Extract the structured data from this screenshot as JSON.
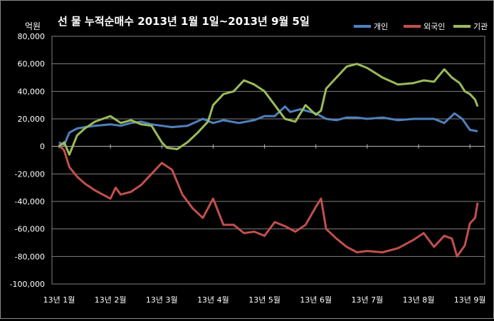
{
  "chart_data": {
    "type": "line",
    "title": "선 물 누적순매수 2013년 1월 1일~2013년 9월 5일",
    "ylabel": "억원",
    "xlabel": "",
    "ylim": [
      -100000,
      80000
    ],
    "yticks": [
      80000,
      60000,
      40000,
      20000,
      0,
      -20000,
      -40000,
      -60000,
      -80000,
      -100000
    ],
    "ytick_labels": [
      "80,000",
      "60,000",
      "40,000",
      "20,000",
      "0",
      "-20,000",
      "-40,000",
      "-60,000",
      "-80,000",
      "-100,000"
    ],
    "x_ticks": [
      "13년 1월",
      "13년 2월",
      "13년 3월",
      "13년 4월",
      "13년 5월",
      "13년 6월",
      "13년 7월",
      "13년 8월",
      "13년 9월"
    ],
    "xlim": [
      0,
      8.15
    ],
    "grid": true,
    "legend": "top-right",
    "series": [
      {
        "name": "개인",
        "color": "#4f81bd",
        "x": [
          0,
          0.1,
          0.2,
          0.35,
          0.5,
          0.7,
          1.0,
          1.2,
          1.4,
          1.6,
          1.8,
          2.0,
          2.2,
          2.5,
          2.8,
          3.0,
          3.2,
          3.5,
          3.8,
          4.0,
          4.2,
          4.4,
          4.5,
          4.7,
          4.9,
          5.0,
          5.2,
          5.4,
          5.6,
          5.8,
          6.0,
          6.3,
          6.6,
          6.9,
          7.1,
          7.3,
          7.5,
          7.7,
          7.85,
          8.0,
          8.15
        ],
        "values": [
          3000,
          1000,
          10000,
          13000,
          14000,
          15000,
          16000,
          15000,
          17000,
          18000,
          16000,
          15000,
          14000,
          15000,
          20000,
          17000,
          19000,
          17000,
          19000,
          22000,
          22000,
          29000,
          25000,
          27000,
          25000,
          24000,
          20000,
          19000,
          21000,
          21000,
          20000,
          21000,
          19000,
          20000,
          20000,
          20000,
          17000,
          24000,
          20000,
          12000,
          11000
        ]
      },
      {
        "name": "외국인",
        "color": "#c0504d",
        "x": [
          0,
          0.1,
          0.2,
          0.35,
          0.5,
          0.7,
          1.0,
          1.1,
          1.2,
          1.4,
          1.6,
          1.8,
          2.0,
          2.2,
          2.4,
          2.6,
          2.8,
          3.0,
          3.2,
          3.4,
          3.6,
          3.8,
          4.0,
          4.2,
          4.4,
          4.6,
          4.8,
          5.0,
          5.1,
          5.2,
          5.4,
          5.6,
          5.8,
          6.0,
          6.3,
          6.6,
          6.9,
          7.1,
          7.3,
          7.5,
          7.65,
          7.75,
          7.9,
          8.0,
          8.1,
          8.15
        ],
        "values": [
          1000,
          -3000,
          -15000,
          -22000,
          -27000,
          -32000,
          -38000,
          -30000,
          -35000,
          -33000,
          -28000,
          -20000,
          -12000,
          -17000,
          -35000,
          -45000,
          -52000,
          -38000,
          -57000,
          -57000,
          -63000,
          -62000,
          -65000,
          -55000,
          -58000,
          -62000,
          -57000,
          -44000,
          -38000,
          -60000,
          -67000,
          -73000,
          -77000,
          -76000,
          -77000,
          -74000,
          -68000,
          -63000,
          -73000,
          -65000,
          -67000,
          -80000,
          -72000,
          -56000,
          -52000,
          -41000
        ]
      },
      {
        "name": "기관",
        "color": "#9bbb59",
        "x": [
          0,
          0.1,
          0.2,
          0.35,
          0.5,
          0.7,
          1.0,
          1.2,
          1.4,
          1.6,
          1.8,
          2.0,
          2.1,
          2.3,
          2.5,
          2.7,
          2.9,
          3.0,
          3.2,
          3.4,
          3.6,
          3.8,
          4.0,
          4.2,
          4.4,
          4.6,
          4.8,
          5.0,
          5.1,
          5.2,
          5.4,
          5.6,
          5.8,
          6.0,
          6.3,
          6.6,
          6.9,
          7.1,
          7.3,
          7.5,
          7.65,
          7.8,
          7.9,
          8.0,
          8.1,
          8.15
        ],
        "values": [
          0,
          3000,
          -6000,
          8000,
          13000,
          18000,
          22000,
          17000,
          19000,
          16000,
          15000,
          3000,
          -1000,
          -2000,
          3000,
          10000,
          18000,
          30000,
          38000,
          40000,
          48000,
          45000,
          40000,
          30000,
          20000,
          18000,
          30000,
          23000,
          26000,
          42000,
          50000,
          58000,
          60000,
          57000,
          50000,
          45000,
          46000,
          48000,
          47000,
          56000,
          50000,
          46000,
          40000,
          38000,
          34000,
          29000
        ]
      }
    ]
  }
}
